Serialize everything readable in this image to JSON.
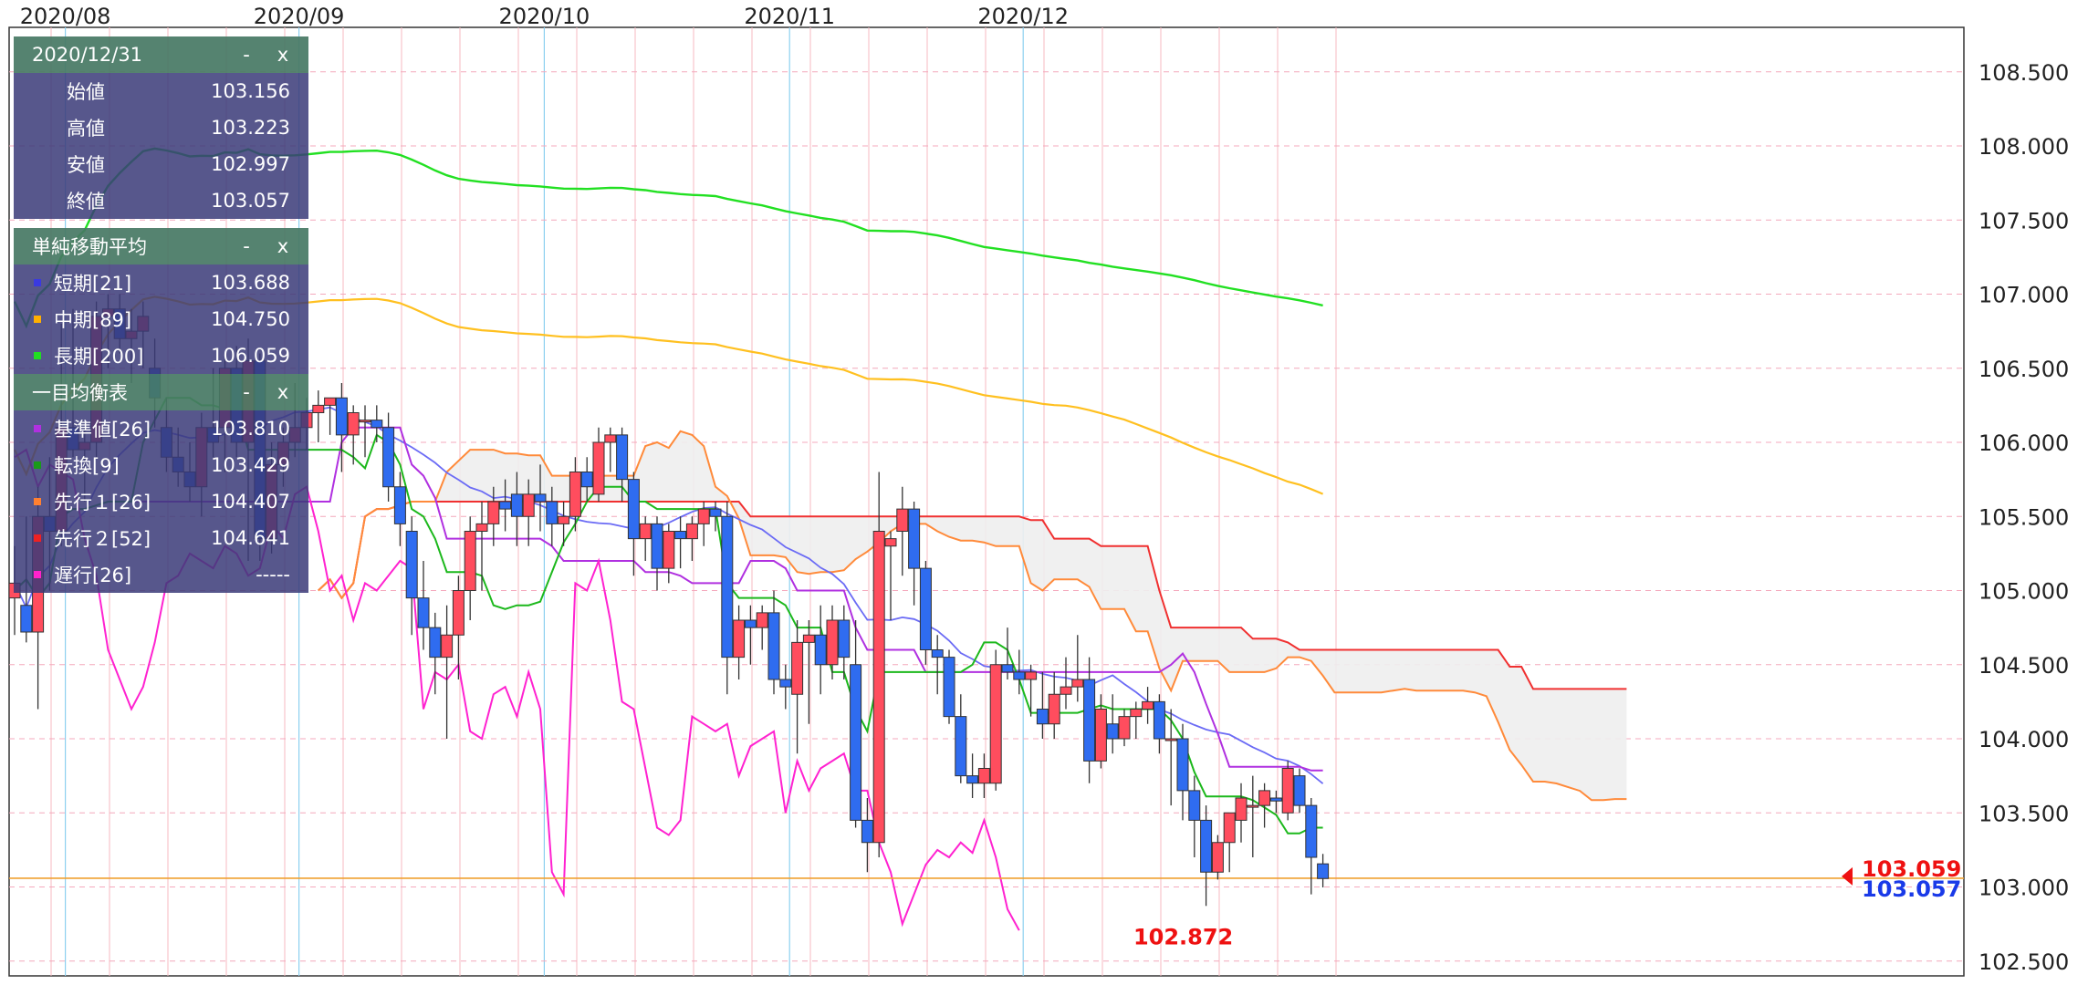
{
  "chart_data": {
    "type": "candlestick",
    "ylim": [
      102.4,
      108.8
    ],
    "y_ticks": [
      "108.500",
      "108.000",
      "107.500",
      "107.000",
      "106.500",
      "106.000",
      "105.500",
      "105.000",
      "104.500",
      "104.000",
      "103.500",
      "103.000",
      "102.500"
    ],
    "x_labels": [
      "2020/08",
      "2020/09",
      "2020/10",
      "2020/11",
      "2020/12"
    ],
    "grid": true,
    "legend": "top-left",
    "candles": [
      {
        "o": 104.95,
        "h": 105.3,
        "l": 104.7,
        "c": 105.05
      },
      {
        "o": 104.9,
        "h": 105.5,
        "l": 104.65,
        "c": 104.72
      },
      {
        "o": 104.72,
        "h": 105.7,
        "l": 104.2,
        "c": 105.5
      },
      {
        "o": 105.5,
        "h": 105.9,
        "l": 105.0,
        "c": 105.4
      },
      {
        "o": 105.4,
        "h": 106.8,
        "l": 105.3,
        "c": 106.1
      },
      {
        "o": 106.1,
        "h": 106.9,
        "l": 105.9,
        "c": 105.95
      },
      {
        "o": 105.95,
        "h": 106.1,
        "l": 105.6,
        "c": 106.0
      },
      {
        "o": 106.0,
        "h": 106.95,
        "l": 105.9,
        "c": 106.85
      },
      {
        "o": 106.85,
        "h": 107.0,
        "l": 106.5,
        "c": 106.9
      },
      {
        "o": 106.9,
        "h": 107.0,
        "l": 106.6,
        "c": 106.7
      },
      {
        "o": 106.7,
        "h": 106.9,
        "l": 106.4,
        "c": 106.75
      },
      {
        "o": 106.75,
        "h": 106.95,
        "l": 106.5,
        "c": 106.85
      },
      {
        "o": 106.5,
        "h": 106.7,
        "l": 106.1,
        "c": 106.3
      },
      {
        "o": 106.1,
        "h": 106.3,
        "l": 105.8,
        "c": 105.9
      },
      {
        "o": 105.9,
        "h": 106.1,
        "l": 105.7,
        "c": 105.8
      },
      {
        "o": 105.8,
        "h": 106.0,
        "l": 105.6,
        "c": 105.7
      },
      {
        "o": 105.7,
        "h": 106.2,
        "l": 105.5,
        "c": 106.1
      },
      {
        "o": 106.1,
        "h": 106.5,
        "l": 105.9,
        "c": 106.0
      },
      {
        "o": 106.1,
        "h": 106.6,
        "l": 105.8,
        "c": 106.5
      },
      {
        "o": 106.5,
        "h": 106.65,
        "l": 105.9,
        "c": 106.0
      },
      {
        "o": 106.0,
        "h": 106.7,
        "l": 105.2,
        "c": 106.55
      },
      {
        "o": 106.55,
        "h": 106.6,
        "l": 105.2,
        "c": 105.35
      },
      {
        "o": 105.35,
        "h": 106.0,
        "l": 105.25,
        "c": 105.85
      },
      {
        "o": 105.85,
        "h": 106.1,
        "l": 105.7,
        "c": 106.0
      },
      {
        "o": 106.0,
        "h": 106.4,
        "l": 105.9,
        "c": 106.1
      },
      {
        "o": 106.1,
        "h": 106.3,
        "l": 105.95,
        "c": 106.2
      },
      {
        "o": 106.2,
        "h": 106.35,
        "l": 106.0,
        "c": 106.25
      },
      {
        "o": 106.25,
        "h": 106.3,
        "l": 106.05,
        "c": 106.3
      },
      {
        "o": 106.3,
        "h": 106.4,
        "l": 105.8,
        "c": 106.05
      },
      {
        "o": 106.05,
        "h": 106.25,
        "l": 105.85,
        "c": 106.2
      },
      {
        "o": 106.15,
        "h": 106.25,
        "l": 105.9,
        "c": 106.15
      },
      {
        "o": 106.15,
        "h": 106.25,
        "l": 106.0,
        "c": 106.1
      },
      {
        "o": 106.1,
        "h": 106.2,
        "l": 105.6,
        "c": 105.7
      },
      {
        "o": 105.7,
        "h": 105.8,
        "l": 105.3,
        "c": 105.45
      },
      {
        "o": 105.4,
        "h": 105.5,
        "l": 104.7,
        "c": 104.95
      },
      {
        "o": 104.95,
        "h": 105.2,
        "l": 104.6,
        "c": 104.75
      },
      {
        "o": 104.75,
        "h": 104.85,
        "l": 104.3,
        "c": 104.55
      },
      {
        "o": 104.55,
        "h": 104.9,
        "l": 104.0,
        "c": 104.7
      },
      {
        "o": 104.7,
        "h": 105.1,
        "l": 104.4,
        "c": 105.0
      },
      {
        "o": 105.0,
        "h": 105.5,
        "l": 104.8,
        "c": 105.4
      },
      {
        "o": 105.4,
        "h": 105.6,
        "l": 105.0,
        "c": 105.45
      },
      {
        "o": 105.45,
        "h": 105.7,
        "l": 105.3,
        "c": 105.6
      },
      {
        "o": 105.6,
        "h": 105.75,
        "l": 105.4,
        "c": 105.55
      },
      {
        "o": 105.65,
        "h": 105.8,
        "l": 105.3,
        "c": 105.5
      },
      {
        "o": 105.5,
        "h": 105.75,
        "l": 105.3,
        "c": 105.65
      },
      {
        "o": 105.65,
        "h": 105.85,
        "l": 105.4,
        "c": 105.6
      },
      {
        "o": 105.6,
        "h": 105.7,
        "l": 105.3,
        "c": 105.45
      },
      {
        "o": 105.45,
        "h": 105.6,
        "l": 105.3,
        "c": 105.5
      },
      {
        "o": 105.5,
        "h": 105.9,
        "l": 105.4,
        "c": 105.8
      },
      {
        "o": 105.8,
        "h": 105.9,
        "l": 105.6,
        "c": 105.7
      },
      {
        "o": 105.65,
        "h": 106.1,
        "l": 105.6,
        "c": 106.0
      },
      {
        "o": 106.0,
        "h": 106.1,
        "l": 105.8,
        "c": 106.05
      },
      {
        "o": 106.05,
        "h": 106.1,
        "l": 105.6,
        "c": 105.75
      },
      {
        "o": 105.75,
        "h": 105.8,
        "l": 105.1,
        "c": 105.35
      },
      {
        "o": 105.35,
        "h": 105.5,
        "l": 105.2,
        "c": 105.45
      },
      {
        "o": 105.45,
        "h": 105.5,
        "l": 105.0,
        "c": 105.15
      },
      {
        "o": 105.15,
        "h": 105.45,
        "l": 105.05,
        "c": 105.4
      },
      {
        "o": 105.4,
        "h": 105.5,
        "l": 105.15,
        "c": 105.35
      },
      {
        "o": 105.35,
        "h": 105.5,
        "l": 105.2,
        "c": 105.45
      },
      {
        "o": 105.45,
        "h": 105.6,
        "l": 105.3,
        "c": 105.55
      },
      {
        "o": 105.55,
        "h": 105.6,
        "l": 105.4,
        "c": 105.5
      },
      {
        "o": 105.5,
        "h": 105.6,
        "l": 104.3,
        "c": 104.55
      },
      {
        "o": 104.55,
        "h": 104.9,
        "l": 104.4,
        "c": 104.8
      },
      {
        "o": 104.8,
        "h": 104.9,
        "l": 104.5,
        "c": 104.75
      },
      {
        "o": 104.75,
        "h": 104.9,
        "l": 104.6,
        "c": 104.85
      },
      {
        "o": 104.85,
        "h": 105.0,
        "l": 104.3,
        "c": 104.4
      },
      {
        "o": 104.4,
        "h": 104.5,
        "l": 104.2,
        "c": 104.35
      },
      {
        "o": 104.3,
        "h": 104.8,
        "l": 103.9,
        "c": 104.65
      },
      {
        "o": 104.65,
        "h": 104.8,
        "l": 104.1,
        "c": 104.7
      },
      {
        "o": 104.7,
        "h": 104.9,
        "l": 104.3,
        "c": 104.5
      },
      {
        "o": 104.5,
        "h": 104.9,
        "l": 104.4,
        "c": 104.8
      },
      {
        "o": 104.8,
        "h": 104.9,
        "l": 104.4,
        "c": 104.55
      },
      {
        "o": 104.5,
        "h": 104.8,
        "l": 103.4,
        "c": 103.45
      },
      {
        "o": 103.45,
        "h": 103.6,
        "l": 103.1,
        "c": 103.3
      },
      {
        "o": 103.3,
        "h": 105.8,
        "l": 103.2,
        "c": 105.4
      },
      {
        "o": 105.3,
        "h": 105.4,
        "l": 104.8,
        "c": 105.35
      },
      {
        "o": 105.4,
        "h": 105.7,
        "l": 105.1,
        "c": 105.55
      },
      {
        "o": 105.55,
        "h": 105.6,
        "l": 104.9,
        "c": 105.15
      },
      {
        "o": 105.15,
        "h": 105.2,
        "l": 104.5,
        "c": 104.6
      },
      {
        "o": 104.6,
        "h": 104.7,
        "l": 104.3,
        "c": 104.55
      },
      {
        "o": 104.55,
        "h": 104.6,
        "l": 104.1,
        "c": 104.15
      },
      {
        "o": 104.15,
        "h": 104.3,
        "l": 103.7,
        "c": 103.75
      },
      {
        "o": 103.75,
        "h": 103.9,
        "l": 103.6,
        "c": 103.7
      },
      {
        "o": 103.7,
        "h": 103.9,
        "l": 103.6,
        "c": 103.8
      },
      {
        "o": 103.7,
        "h": 104.6,
        "l": 103.65,
        "c": 104.5
      },
      {
        "o": 104.5,
        "h": 104.75,
        "l": 104.4,
        "c": 104.45
      },
      {
        "o": 104.45,
        "h": 104.6,
        "l": 104.3,
        "c": 104.4
      },
      {
        "o": 104.4,
        "h": 104.5,
        "l": 104.15,
        "c": 104.45
      },
      {
        "o": 104.2,
        "h": 104.45,
        "l": 104.0,
        "c": 104.1
      },
      {
        "o": 104.1,
        "h": 104.45,
        "l": 104.0,
        "c": 104.3
      },
      {
        "o": 104.3,
        "h": 104.55,
        "l": 104.2,
        "c": 104.35
      },
      {
        "o": 104.35,
        "h": 104.7,
        "l": 104.25,
        "c": 104.4
      },
      {
        "o": 104.4,
        "h": 104.55,
        "l": 103.7,
        "c": 103.85
      },
      {
        "o": 103.85,
        "h": 104.3,
        "l": 103.8,
        "c": 104.2
      },
      {
        "o": 104.1,
        "h": 104.3,
        "l": 103.9,
        "c": 104.0
      },
      {
        "o": 104.0,
        "h": 104.2,
        "l": 103.95,
        "c": 104.15
      },
      {
        "o": 104.15,
        "h": 104.25,
        "l": 104.0,
        "c": 104.2
      },
      {
        "o": 104.2,
        "h": 104.35,
        "l": 104.1,
        "c": 104.25
      },
      {
        "o": 104.25,
        "h": 104.3,
        "l": 103.9,
        "c": 104.0
      },
      {
        "o": 104.0,
        "h": 104.2,
        "l": 103.55,
        "c": 104.0
      },
      {
        "o": 104.0,
        "h": 104.1,
        "l": 103.45,
        "c": 103.65
      },
      {
        "o": 103.65,
        "h": 103.75,
        "l": 103.2,
        "c": 103.45
      },
      {
        "o": 103.45,
        "h": 103.55,
        "l": 102.872,
        "c": 103.1
      },
      {
        "o": 103.1,
        "h": 103.35,
        "l": 103.05,
        "c": 103.3
      },
      {
        "o": 103.3,
        "h": 103.5,
        "l": 103.1,
        "c": 103.5
      },
      {
        "o": 103.45,
        "h": 103.7,
        "l": 103.3,
        "c": 103.6
      },
      {
        "o": 103.55,
        "h": 103.75,
        "l": 103.2,
        "c": 103.55
      },
      {
        "o": 103.55,
        "h": 103.7,
        "l": 103.4,
        "c": 103.65
      },
      {
        "o": 103.6,
        "h": 103.65,
        "l": 103.5,
        "c": 103.58
      },
      {
        "o": 103.5,
        "h": 103.85,
        "l": 103.45,
        "c": 103.8
      },
      {
        "o": 103.75,
        "h": 103.8,
        "l": 103.5,
        "c": 103.55
      },
      {
        "o": 103.55,
        "h": 103.6,
        "l": 102.95,
        "c": 103.2
      },
      {
        "o": 103.156,
        "h": 103.223,
        "l": 102.997,
        "c": 103.057
      }
    ],
    "current_price_label": "103.059",
    "close_price_label": "103.057",
    "low_label": "102.872",
    "reference_line": 103.059
  },
  "ohlc_panel": {
    "date": "2020/12/31",
    "rows": [
      {
        "label": "始値",
        "value": "103.156"
      },
      {
        "label": "高値",
        "value": "103.223"
      },
      {
        "label": "安値",
        "value": "102.997"
      },
      {
        "label": "終値",
        "value": "103.057"
      }
    ]
  },
  "sma_panel": {
    "title": "単純移動平均",
    "rows": [
      {
        "label": "短期[21]",
        "value": "103.688",
        "color": "#3a3ae0"
      },
      {
        "label": "中期[89]",
        "value": "104.750",
        "color": "#ffb000"
      },
      {
        "label": "長期[200]",
        "value": "106.059",
        "color": "#22dd22"
      }
    ]
  },
  "ichimoku_panel": {
    "title": "一目均衡表",
    "rows": [
      {
        "label": "基準値[26]",
        "value": "103.810",
        "color": "#b030e0"
      },
      {
        "label": "転換[9]",
        "value": "103.429",
        "color": "#1a9a1a"
      },
      {
        "label": "先行１[26]",
        "value": "104.407",
        "color": "#ff8030"
      },
      {
        "label": "先行２[52]",
        "value": "104.641",
        "color": "#ee2222"
      },
      {
        "label": "遅行[26]",
        "value": "-----",
        "color": "#ff22cc"
      }
    ]
  },
  "panel_controls": {
    "minimize": "-",
    "close": "x"
  },
  "colors": {
    "up": "#ff4d5e",
    "down": "#2f6cf0",
    "sma_short": "#6b6bf5",
    "sma_mid": "#ffc020",
    "sma_long": "#22e022",
    "kijun": "#b030e0",
    "tenkan": "#1cb81c",
    "senkou1": "#ff8a3a",
    "senkou2": "#f03030",
    "chikou": "#ff22d0",
    "cloud": "#eeeeee"
  }
}
